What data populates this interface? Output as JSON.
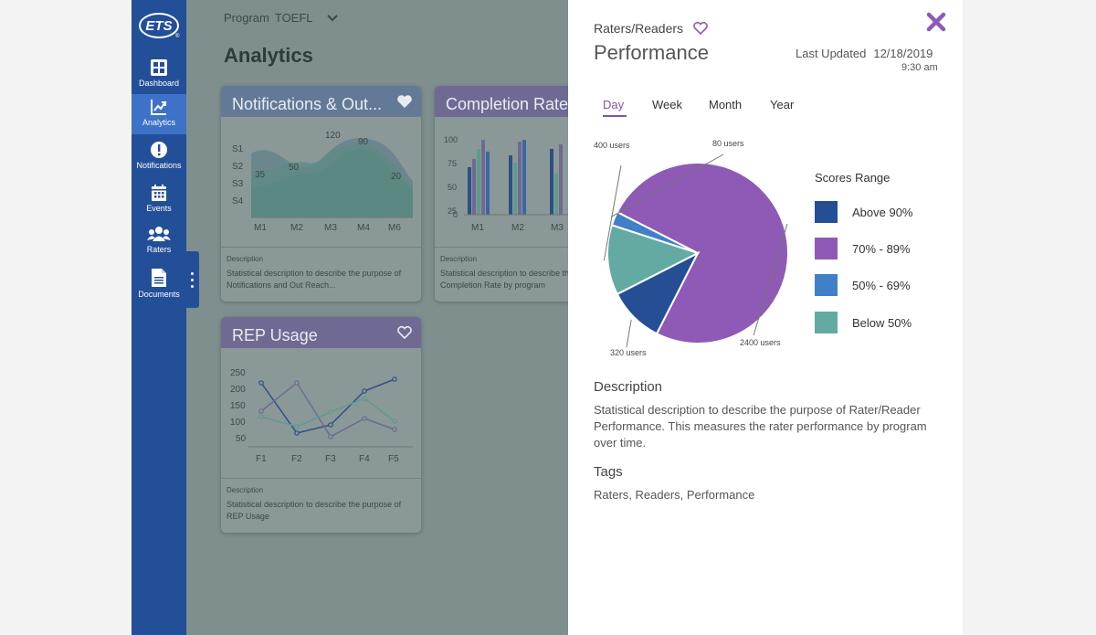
{
  "app": {
    "logo_text": "ETS",
    "logo_mark": "®"
  },
  "sidebar": {
    "items": [
      {
        "label": "Dashboard",
        "icon": "dashboard-icon"
      },
      {
        "label": "Analytics",
        "icon": "analytics-icon",
        "active": true
      },
      {
        "label": "Notifications",
        "icon": "notifications-icon"
      },
      {
        "label": "Events",
        "icon": "calendar-icon"
      },
      {
        "label": "Raters",
        "icon": "users-icon"
      },
      {
        "label": "Documents",
        "icon": "document-icon"
      }
    ]
  },
  "header": {
    "program_label": "Program",
    "program_value": "TOEFL",
    "page_title": "Analytics"
  },
  "cards": {
    "notifications": {
      "title": "Notifications & Out...",
      "desc_label": "Description",
      "desc_text": "Statistical description to describe the purpose of Notifications and Out Reach...",
      "y_labels": [
        "S1",
        "S2",
        "S3",
        "S4"
      ],
      "x_labels": [
        "M1",
        "M2",
        "M3",
        "M4",
        "M6"
      ],
      "data_labels": [
        "35",
        "50",
        "120",
        "90",
        "20"
      ]
    },
    "completion": {
      "title": "Completion Rate",
      "desc_label": "Description",
      "desc_text": "Statistical description to describe the purpose of Completion Rate by program",
      "y_labels": [
        "100",
        "75",
        "50",
        "25",
        "0"
      ],
      "x_labels": [
        "M1",
        "M2",
        "M3"
      ]
    },
    "rep": {
      "title": "REP Usage",
      "desc_label": "Description",
      "desc_text": "Statistical description to describe the purpose of REP Usage",
      "y_labels": [
        "250",
        "200",
        "150",
        "100",
        "50"
      ],
      "x_labels": [
        "F1",
        "F2",
        "F3",
        "F4",
        "F5"
      ]
    }
  },
  "panel": {
    "category": "Raters/Readers",
    "title": "Performance",
    "updated_label": "Last Updated",
    "updated_date": "12/18/2019",
    "updated_time": "9:30 am",
    "tabs": [
      "Day",
      "Week",
      "Month",
      "Year"
    ],
    "active_tab": "Day",
    "legend_title": "Scores Range",
    "description_heading": "Description",
    "description_text": "Statistical description to describe the purpose of Rater/Reader Performance. This measures the rater performance by program over time.",
    "tags_heading": "Tags",
    "tags_text": "Raters, Readers, Performance",
    "colors": {
      "accent": "#7d54b2",
      "sidebar": "#234f99",
      "sidebar_active": "#3d72c8"
    }
  },
  "chart_data": {
    "type": "pie",
    "title": "Performance",
    "legend_title": "Scores Range",
    "categories": [
      "Above 90%",
      "70% - 89%",
      "50% - 69%",
      "Below 50%"
    ],
    "values": [
      320,
      2400,
      80,
      400
    ],
    "data_labels": [
      "320 users",
      "2400 users",
      "80 users",
      "400 users"
    ],
    "colors": [
      "#264e95",
      "#8e5ab5",
      "#4080c8",
      "#63aba2"
    ],
    "legend_position": "right"
  }
}
